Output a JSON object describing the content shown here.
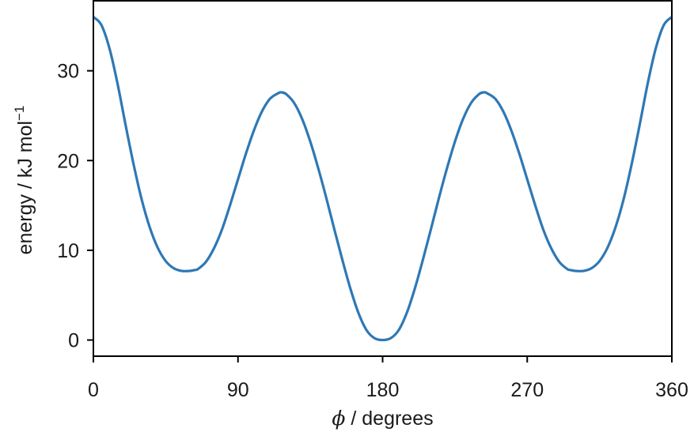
{
  "chart_data": {
    "type": "line",
    "title": "",
    "xlabel_symbol": "ϕ",
    "xlabel_text": " / degrees",
    "ylabel_text": "energy / kJ mol",
    "ylabel_superscript": "−1",
    "xlim": [
      0,
      360
    ],
    "ylim": [
      -1.8,
      37.8
    ],
    "xticks": [
      0,
      90,
      180,
      270,
      360
    ],
    "xtick_labels": [
      "0",
      "90",
      "180",
      "270",
      "360"
    ],
    "yticks": [
      0,
      10,
      20,
      30
    ],
    "ytick_labels": [
      "0",
      "10",
      "20",
      "30"
    ],
    "grid": false,
    "legend": "none",
    "series": [
      {
        "color": "#2e78b5",
        "x": [
          0,
          5,
          10,
          15,
          20,
          25,
          30,
          35,
          40,
          45,
          50,
          55,
          60,
          63,
          65,
          70,
          75,
          80,
          85,
          90,
          95,
          100,
          105,
          110,
          115,
          117,
          120,
          125,
          130,
          135,
          140,
          145,
          150,
          155,
          160,
          165,
          170,
          175,
          180,
          185,
          190,
          195,
          200,
          205,
          210,
          215,
          220,
          225,
          230,
          235,
          240,
          243,
          245,
          250,
          255,
          260,
          265,
          270,
          275,
          280,
          285,
          290,
          295,
          297,
          300,
          305,
          310,
          315,
          320,
          325,
          330,
          335,
          340,
          345,
          350,
          355,
          360
        ],
        "y": [
          36.0,
          35.1,
          32.5,
          28.6,
          24.0,
          19.6,
          15.7,
          12.6,
          10.3,
          8.8,
          8.0,
          7.7,
          7.7,
          7.8,
          7.9,
          8.7,
          10.2,
          12.3,
          15.0,
          17.9,
          20.8,
          23.4,
          25.5,
          26.9,
          27.5,
          27.6,
          27.4,
          26.4,
          24.6,
          22.1,
          19.1,
          15.8,
          12.3,
          8.9,
          5.7,
          3.0,
          1.1,
          0.2,
          0.0,
          0.2,
          1.1,
          3.0,
          5.7,
          8.9,
          12.3,
          15.8,
          19.1,
          22.1,
          24.6,
          26.4,
          27.4,
          27.6,
          27.5,
          26.9,
          25.5,
          23.4,
          20.8,
          17.9,
          15.0,
          12.3,
          10.2,
          8.7,
          7.9,
          7.8,
          7.7,
          7.7,
          8.0,
          8.8,
          10.3,
          12.6,
          15.7,
          19.6,
          24.0,
          28.6,
          32.5,
          35.1,
          36.0
        ]
      }
    ]
  }
}
